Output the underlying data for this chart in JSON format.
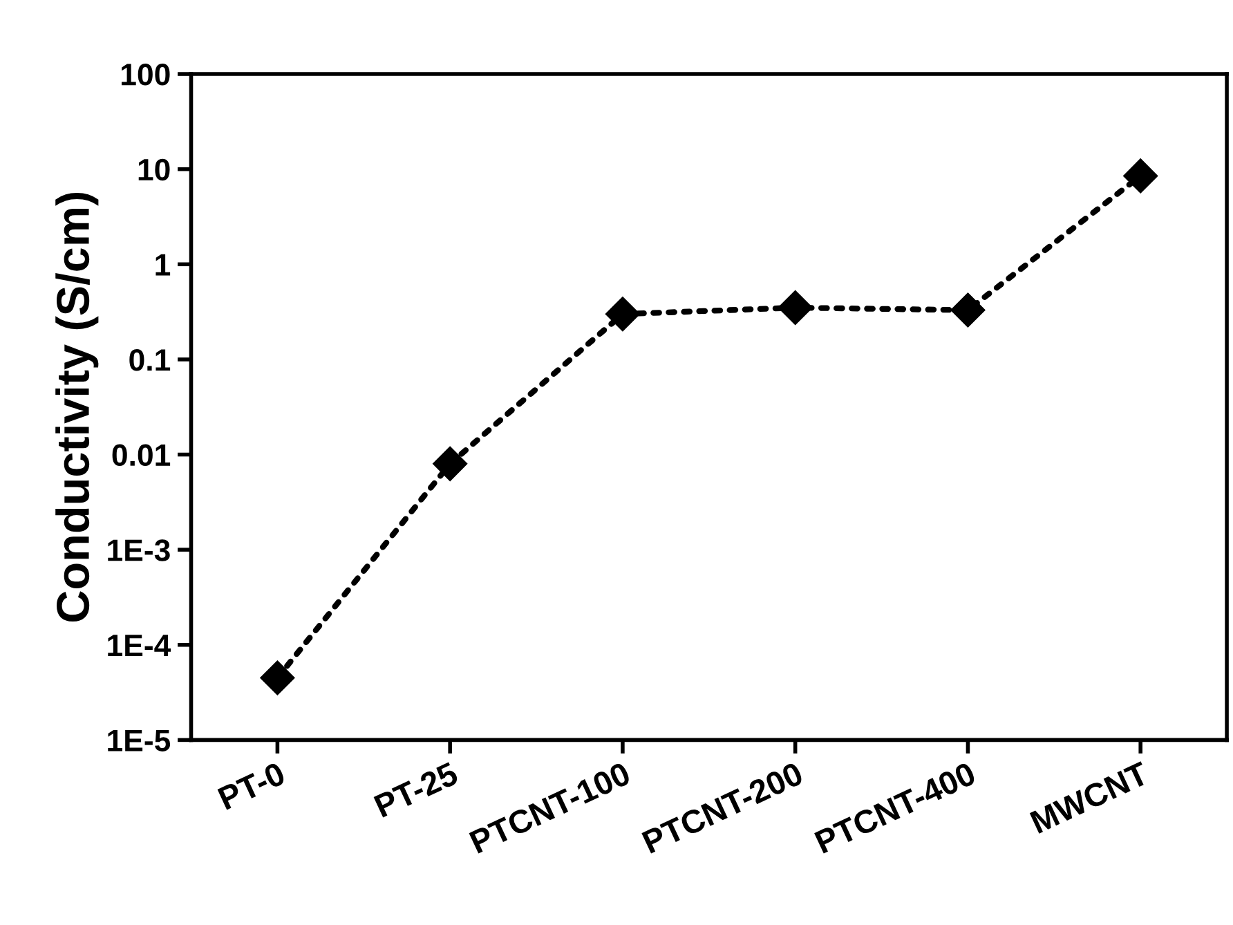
{
  "chart_data": {
    "type": "line",
    "ylabel": "Conductivity (S/cm)",
    "categories": [
      "PT-0",
      "PT-25",
      "PTCNT-100",
      "PTCNT-200",
      "PTCNT-400",
      "MWCNT"
    ],
    "series": [
      {
        "color": "#000000",
        "values": [
          4.5e-05,
          0.008,
          0.3,
          0.35,
          0.33,
          8.5
        ]
      }
    ],
    "log": "y",
    "ylim": [
      1e-05,
      100
    ],
    "yticks": [
      {
        "value": 1e-05,
        "label": "1E-5"
      },
      {
        "value": 0.0001,
        "label": "1E-4"
      },
      {
        "value": 0.001,
        "label": "1E-3"
      },
      {
        "value": 0.01,
        "label": "0.01"
      },
      {
        "value": 0.1,
        "label": "0.1"
      },
      {
        "value": 1,
        "label": "1"
      },
      {
        "value": 10,
        "label": "10"
      },
      {
        "value": 100,
        "label": "100"
      }
    ],
    "marker": "diamond",
    "line_style": "dotted",
    "grid": false,
    "legend": false
  }
}
